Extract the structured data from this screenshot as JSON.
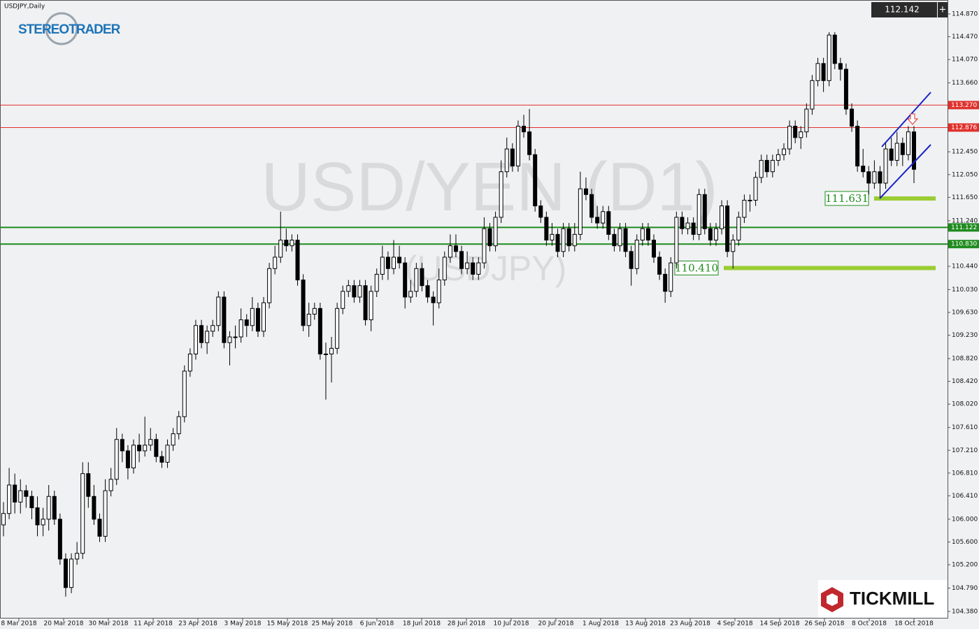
{
  "chart_data": {
    "type": "candlestick",
    "symbol_label": "USDJPY,Daily",
    "watermark": "USD/YEN (D1)",
    "watermark_sub": "(USDJPY)",
    "logo_left": "STEREOTRADER",
    "logo_right": "TICKMILL",
    "last_price": 112.142,
    "ylim": [
      104.256,
      115.115
    ],
    "yticks": [
      {
        "value": 114.87,
        "label": "114.870"
      },
      {
        "value": 114.47,
        "label": "114.470"
      },
      {
        "value": 114.07,
        "label": "114.070"
      },
      {
        "value": 113.66,
        "label": "113.660"
      },
      {
        "value": 112.45,
        "label": "112.450"
      },
      {
        "value": 112.05,
        "label": "112.050"
      },
      {
        "value": 111.65,
        "label": "111.650"
      },
      {
        "value": 111.24,
        "label": "111.240"
      },
      {
        "value": 110.44,
        "label": "110.440"
      },
      {
        "value": 110.03,
        "label": "110.030"
      },
      {
        "value": 109.63,
        "label": "109.630"
      },
      {
        "value": 109.23,
        "label": "109.230"
      },
      {
        "value": 108.82,
        "label": "108.820"
      },
      {
        "value": 108.42,
        "label": "108.420"
      },
      {
        "value": 108.02,
        "label": "108.020"
      },
      {
        "value": 107.61,
        "label": "107.610"
      },
      {
        "value": 107.21,
        "label": "107.210"
      },
      {
        "value": 106.81,
        "label": "106.810"
      },
      {
        "value": 106.41,
        "label": "106.410"
      },
      {
        "value": 106.0,
        "label": "106.000"
      },
      {
        "value": 105.6,
        "label": "105.600"
      },
      {
        "value": 105.2,
        "label": "105.200"
      },
      {
        "value": 104.79,
        "label": "104.790"
      },
      {
        "value": 104.38,
        "label": "104.380"
      }
    ],
    "x_labels": [
      "8 Mar 2018",
      "20 Mar 2018",
      "30 Mar 2018",
      "11 Apr 2018",
      "23 Apr 2018",
      "3 May 2018",
      "15 May 2018",
      "25 May 2018",
      "6 Jun 2018",
      "18 Jun 2018",
      "28 Jun 2018",
      "10 Jul 2018",
      "20 Jul 2018",
      "1 Aug 2018",
      "13 Aug 2018",
      "23 Aug 2018",
      "4 Sep 2018",
      "14 Sep 2018",
      "26 Sep 2018",
      "8 Oct 2018",
      "18 Oct 2018"
    ],
    "levels": [
      {
        "value": 113.27,
        "label": "113.270",
        "color": "#e0312c"
      },
      {
        "value": 112.876,
        "label": "112.876",
        "color": "#e0312c"
      },
      {
        "value": 111.122,
        "label": "111.122",
        "color": "#1e8c1e"
      },
      {
        "value": 110.83,
        "label": "110.830",
        "color": "#1e8c1e"
      }
    ],
    "supports": [
      {
        "value": 111.631,
        "label": "111.631",
        "color": "#9acd32"
      },
      {
        "value": 110.41,
        "label": "110.410",
        "color": "#9acd32"
      }
    ],
    "candles": [
      [
        105.9,
        106.3,
        105.7,
        106.1
      ],
      [
        106.1,
        106.9,
        106.0,
        106.6
      ],
      [
        106.6,
        106.8,
        106.1,
        106.3
      ],
      [
        106.3,
        106.7,
        106.1,
        106.5
      ],
      [
        106.5,
        106.6,
        106.2,
        106.4
      ],
      [
        106.4,
        106.5,
        106.0,
        106.2
      ],
      [
        106.2,
        106.4,
        105.7,
        105.9
      ],
      [
        105.9,
        106.2,
        105.7,
        106.0
      ],
      [
        106.0,
        106.6,
        105.8,
        106.4
      ],
      [
        106.4,
        106.5,
        105.9,
        106.0
      ],
      [
        106.0,
        106.1,
        105.2,
        105.3
      ],
      [
        105.3,
        105.4,
        104.64,
        104.8
      ],
      [
        104.8,
        105.4,
        104.7,
        105.3
      ],
      [
        105.3,
        105.6,
        105.2,
        105.4
      ],
      [
        105.4,
        107.0,
        105.3,
        106.8
      ],
      [
        106.8,
        107.0,
        106.2,
        106.4
      ],
      [
        106.4,
        106.6,
        105.9,
        106.0
      ],
      [
        106.0,
        106.1,
        105.6,
        105.7
      ],
      [
        105.7,
        106.7,
        105.6,
        106.5
      ],
      [
        106.5,
        106.9,
        106.4,
        106.7
      ],
      [
        106.7,
        107.6,
        106.6,
        107.4
      ],
      [
        107.4,
        107.5,
        107.0,
        107.2
      ],
      [
        107.2,
        107.3,
        106.7,
        106.9
      ],
      [
        106.9,
        107.4,
        106.8,
        107.3
      ],
      [
        107.3,
        107.5,
        107.0,
        107.2
      ],
      [
        107.2,
        107.8,
        107.1,
        107.3
      ],
      [
        107.3,
        107.6,
        107.2,
        107.4
      ],
      [
        107.4,
        107.5,
        107.0,
        107.1
      ],
      [
        107.1,
        107.2,
        106.9,
        107.0
      ],
      [
        107.0,
        107.4,
        106.9,
        107.3
      ],
      [
        107.3,
        107.6,
        107.2,
        107.5
      ],
      [
        107.5,
        107.9,
        107.4,
        107.8
      ],
      [
        107.8,
        108.7,
        107.7,
        108.6
      ],
      [
        108.6,
        109.0,
        108.5,
        108.9
      ],
      [
        108.9,
        109.5,
        108.8,
        109.4
      ],
      [
        109.4,
        109.5,
        109.0,
        109.1
      ],
      [
        109.1,
        109.4,
        108.9,
        109.3
      ],
      [
        109.3,
        109.5,
        109.2,
        109.4
      ],
      [
        109.4,
        110.0,
        109.3,
        109.9
      ],
      [
        109.9,
        110.0,
        109.0,
        109.1
      ],
      [
        109.1,
        109.3,
        108.7,
        109.2
      ],
      [
        109.2,
        109.4,
        109.0,
        109.2
      ],
      [
        109.2,
        109.7,
        109.1,
        109.5
      ],
      [
        109.5,
        109.6,
        109.2,
        109.4
      ],
      [
        109.4,
        109.9,
        109.3,
        109.7
      ],
      [
        109.7,
        109.8,
        109.2,
        109.3
      ],
      [
        109.3,
        109.9,
        109.2,
        109.8
      ],
      [
        109.8,
        110.5,
        109.7,
        110.4
      ],
      [
        110.4,
        110.8,
        110.3,
        110.6
      ],
      [
        110.6,
        111.4,
        110.5,
        110.9
      ],
      [
        110.9,
        111.1,
        110.7,
        110.8
      ],
      [
        110.8,
        111.0,
        110.7,
        110.9
      ],
      [
        110.9,
        111.0,
        110.1,
        110.2
      ],
      [
        110.2,
        110.3,
        109.3,
        109.4
      ],
      [
        109.4,
        109.8,
        109.2,
        109.6
      ],
      [
        109.6,
        109.8,
        109.5,
        109.7
      ],
      [
        109.7,
        109.8,
        108.8,
        108.9
      ],
      [
        108.9,
        109.1,
        108.1,
        108.9
      ],
      [
        108.9,
        109.2,
        108.4,
        109.0
      ],
      [
        109.0,
        109.8,
        108.9,
        109.7
      ],
      [
        109.7,
        110.1,
        109.6,
        110.0
      ],
      [
        110.0,
        110.2,
        109.9,
        110.1
      ],
      [
        110.1,
        110.2,
        109.8,
        109.9
      ],
      [
        109.9,
        110.2,
        109.8,
        110.1
      ],
      [
        110.1,
        110.2,
        109.4,
        109.5
      ],
      [
        109.5,
        110.1,
        109.3,
        110.0
      ],
      [
        110.0,
        110.4,
        109.9,
        110.3
      ],
      [
        110.3,
        110.8,
        110.2,
        110.6
      ],
      [
        110.6,
        110.7,
        110.2,
        110.4
      ],
      [
        110.4,
        110.9,
        110.3,
        110.6
      ],
      [
        110.6,
        110.8,
        110.4,
        110.5
      ],
      [
        110.5,
        110.6,
        109.7,
        109.9
      ],
      [
        109.9,
        110.2,
        109.8,
        110.0
      ],
      [
        110.0,
        110.5,
        109.9,
        110.4
      ],
      [
        110.4,
        110.5,
        110.0,
        110.1
      ],
      [
        110.1,
        110.2,
        109.8,
        109.9
      ],
      [
        109.9,
        110.0,
        109.4,
        109.8
      ],
      [
        109.8,
        110.4,
        109.7,
        110.2
      ],
      [
        110.2,
        110.7,
        110.1,
        110.6
      ],
      [
        110.6,
        111.0,
        110.5,
        110.8
      ],
      [
        110.8,
        111.0,
        110.6,
        110.7
      ],
      [
        110.7,
        110.8,
        110.3,
        110.4
      ],
      [
        110.4,
        110.7,
        110.3,
        110.5
      ],
      [
        110.5,
        110.6,
        110.2,
        110.3
      ],
      [
        110.3,
        110.6,
        110.2,
        110.5
      ],
      [
        110.5,
        111.3,
        110.4,
        111.1
      ],
      [
        111.1,
        111.2,
        110.7,
        110.8
      ],
      [
        110.8,
        111.4,
        110.7,
        111.3
      ],
      [
        111.3,
        112.3,
        111.2,
        112.1
      ],
      [
        112.1,
        112.7,
        112.0,
        112.5
      ],
      [
        112.5,
        112.6,
        112.1,
        112.2
      ],
      [
        112.2,
        113.0,
        112.1,
        112.9
      ],
      [
        112.9,
        113.1,
        112.7,
        112.8
      ],
      [
        112.8,
        113.2,
        112.3,
        112.4
      ],
      [
        112.4,
        112.5,
        111.4,
        111.5
      ],
      [
        111.5,
        111.6,
        111.2,
        111.3
      ],
      [
        111.3,
        111.4,
        110.8,
        110.9
      ],
      [
        110.9,
        111.2,
        110.8,
        111.0
      ],
      [
        111.0,
        111.1,
        110.6,
        110.7
      ],
      [
        110.7,
        111.2,
        110.6,
        111.1
      ],
      [
        111.1,
        111.2,
        110.7,
        110.8
      ],
      [
        110.8,
        111.2,
        110.7,
        111.0
      ],
      [
        111.0,
        112.1,
        110.9,
        111.8
      ],
      [
        111.8,
        112.0,
        111.6,
        111.7
      ],
      [
        111.7,
        111.8,
        111.2,
        111.3
      ],
      [
        111.3,
        111.5,
        111.1,
        111.2
      ],
      [
        111.2,
        111.5,
        111.1,
        111.4
      ],
      [
        111.4,
        111.5,
        110.9,
        111.0
      ],
      [
        111.0,
        111.1,
        110.7,
        110.8
      ],
      [
        110.8,
        111.2,
        110.7,
        111.1
      ],
      [
        111.1,
        111.2,
        110.6,
        110.7
      ],
      [
        110.7,
        110.8,
        110.1,
        110.4
      ],
      [
        110.4,
        111.0,
        110.3,
        110.9
      ],
      [
        110.9,
        111.2,
        110.8,
        111.1
      ],
      [
        111.1,
        111.2,
        110.8,
        110.9
      ],
      [
        110.9,
        111.0,
        110.5,
        110.6
      ],
      [
        110.6,
        110.7,
        110.2,
        110.3
      ],
      [
        110.3,
        110.4,
        109.8,
        110.0
      ],
      [
        110.0,
        110.6,
        109.9,
        110.5
      ],
      [
        110.5,
        111.4,
        110.4,
        111.3
      ],
      [
        111.3,
        111.4,
        111.0,
        111.1
      ],
      [
        111.1,
        111.3,
        111.0,
        111.2
      ],
      [
        111.2,
        111.3,
        110.9,
        111.0
      ],
      [
        111.0,
        111.8,
        110.9,
        111.7
      ],
      [
        111.7,
        111.8,
        111.0,
        111.1
      ],
      [
        111.1,
        111.2,
        110.8,
        110.9
      ],
      [
        110.9,
        111.2,
        110.8,
        111.1
      ],
      [
        111.1,
        111.6,
        111.0,
        111.5
      ],
      [
        111.5,
        111.6,
        110.6,
        110.7
      ],
      [
        110.7,
        111.0,
        110.4,
        110.9
      ],
      [
        110.9,
        111.4,
        110.8,
        111.3
      ],
      [
        111.3,
        111.7,
        111.2,
        111.6
      ],
      [
        111.6,
        111.7,
        111.4,
        111.6
      ],
      [
        111.6,
        112.1,
        111.5,
        112.0
      ],
      [
        112.0,
        112.4,
        111.9,
        112.3
      ],
      [
        112.3,
        112.4,
        112.0,
        112.1
      ],
      [
        112.1,
        112.4,
        112.0,
        112.3
      ],
      [
        112.3,
        112.5,
        112.2,
        112.4
      ],
      [
        112.4,
        112.6,
        112.3,
        112.5
      ],
      [
        112.5,
        113.0,
        112.4,
        112.9
      ],
      [
        112.9,
        113.0,
        112.6,
        112.7
      ],
      [
        112.7,
        112.9,
        112.5,
        112.8
      ],
      [
        112.8,
        113.3,
        112.7,
        113.2
      ],
      [
        113.2,
        113.8,
        113.1,
        113.7
      ],
      [
        113.7,
        114.1,
        113.6,
        114.0
      ],
      [
        114.0,
        114.1,
        113.5,
        113.7
      ],
      [
        113.7,
        114.55,
        113.6,
        114.5
      ],
      [
        114.5,
        114.55,
        113.9,
        114.0
      ],
      [
        114.0,
        114.1,
        113.7,
        113.9
      ],
      [
        113.9,
        114.0,
        113.1,
        113.2
      ],
      [
        113.2,
        113.3,
        112.8,
        112.9
      ],
      [
        112.9,
        113.0,
        112.1,
        112.2
      ],
      [
        112.2,
        112.5,
        112.0,
        112.1
      ],
      [
        112.1,
        112.2,
        111.7,
        111.9
      ],
      [
        111.9,
        112.3,
        111.8,
        112.1
      ],
      [
        112.1,
        112.2,
        111.63,
        111.9
      ],
      [
        111.9,
        112.6,
        111.8,
        112.5
      ],
      [
        112.5,
        112.7,
        112.2,
        112.3
      ],
      [
        112.3,
        112.8,
        112.2,
        112.6
      ],
      [
        112.6,
        112.7,
        112.2,
        112.4
      ],
      [
        112.4,
        112.9,
        112.3,
        112.8
      ],
      [
        112.8,
        112.9,
        111.9,
        112.142
      ]
    ]
  }
}
